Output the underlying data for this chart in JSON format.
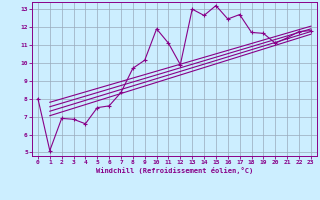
{
  "bg_color": "#cceeff",
  "line_color": "#880088",
  "grid_color": "#99aabb",
  "xlabel": "Windchill (Refroidissement éolien,°C)",
  "xlim": [
    -0.5,
    23.5
  ],
  "ylim": [
    4.8,
    13.4
  ],
  "xticks": [
    0,
    1,
    2,
    3,
    4,
    5,
    6,
    7,
    8,
    9,
    10,
    11,
    12,
    13,
    14,
    15,
    16,
    17,
    18,
    19,
    20,
    21,
    22,
    23
  ],
  "yticks": [
    5,
    6,
    7,
    8,
    9,
    10,
    11,
    12,
    13
  ],
  "scatter_x": [
    0,
    1,
    2,
    3,
    4,
    5,
    6,
    7,
    8,
    9,
    10,
    11,
    12,
    13,
    14,
    15,
    16,
    17,
    18,
    19,
    20,
    21,
    22,
    23
  ],
  "scatter_y": [
    8.0,
    5.1,
    6.9,
    6.85,
    6.6,
    7.5,
    7.6,
    8.35,
    9.7,
    10.15,
    11.9,
    11.1,
    9.9,
    13.0,
    12.65,
    13.2,
    12.45,
    12.7,
    11.7,
    11.65,
    11.1,
    11.4,
    11.75,
    11.8
  ],
  "reg_lines": [
    {
      "x0": 1,
      "y0": 7.05,
      "x1": 23,
      "y1": 11.6
    },
    {
      "x0": 1,
      "y0": 7.3,
      "x1": 23,
      "y1": 11.75
    },
    {
      "x0": 1,
      "y0": 7.55,
      "x1": 23,
      "y1": 11.9
    },
    {
      "x0": 1,
      "y0": 7.8,
      "x1": 23,
      "y1": 12.05
    }
  ]
}
